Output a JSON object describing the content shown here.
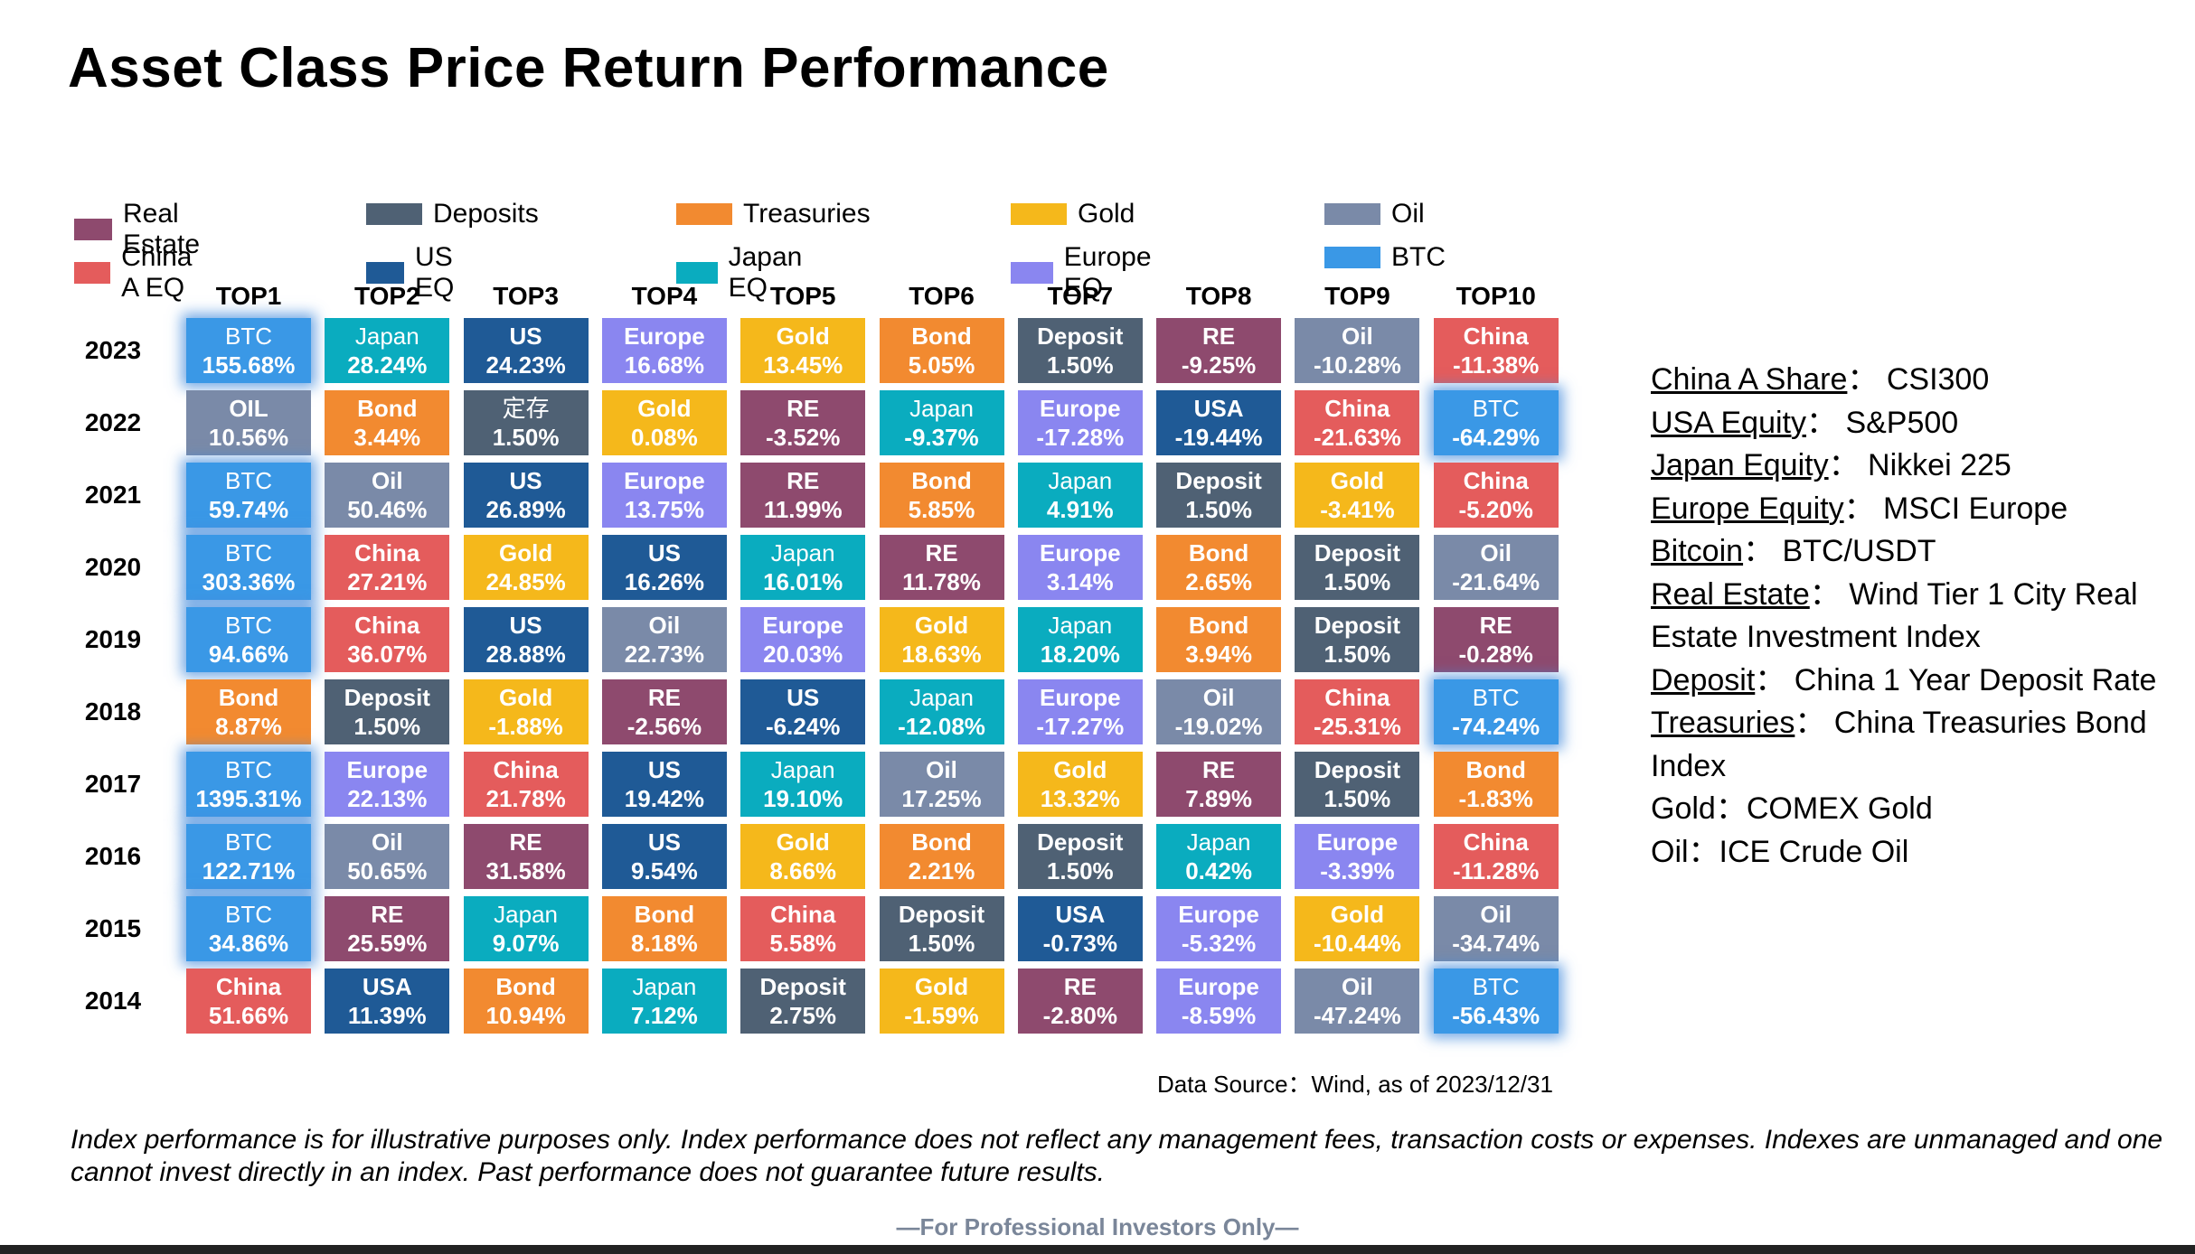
{
  "title": "Asset Class Price Return Performance",
  "colors": {
    "Real Estate": "#8e4a6e",
    "Deposits": "#4f6174",
    "Treasuries": "#f28a30",
    "Gold": "#f5b81b",
    "Oil": "#7a8aa8",
    "China A EQ": "#e45c5c",
    "US EQ": "#1f5a96",
    "Japan EQ": "#0aacbf",
    "Europe EQ": "#8a86f0",
    "BTC": "#3a98e6"
  },
  "legend": [
    {
      "label": "Real Estate",
      "key": "Real Estate"
    },
    {
      "label": "China A EQ",
      "key": "China A EQ"
    },
    {
      "label": "Deposits",
      "key": "Deposits"
    },
    {
      "label": "US EQ",
      "key": "US EQ"
    },
    {
      "label": "Treasuries",
      "key": "Treasuries"
    },
    {
      "label": "Japan EQ",
      "key": "Japan EQ"
    },
    {
      "label": "Gold",
      "key": "Gold"
    },
    {
      "label": "Europe EQ",
      "key": "Europe EQ"
    },
    {
      "label": "Oil",
      "key": "Oil"
    },
    {
      "label": "BTC",
      "key": "BTC"
    }
  ],
  "chart_data": {
    "type": "table",
    "title": "Asset Class Price Return Performance",
    "columns": [
      "TOP1",
      "TOP2",
      "TOP3",
      "TOP4",
      "TOP5",
      "TOP6",
      "TOP7",
      "TOP8",
      "TOP9",
      "TOP10"
    ],
    "rows": [
      {
        "year": "2023",
        "cells": [
          {
            "name": "BTC",
            "value": "155.68%",
            "cls": "BTC"
          },
          {
            "name": "Japan",
            "value": "28.24%",
            "cls": "Japan EQ"
          },
          {
            "name": "US",
            "value": "24.23%",
            "cls": "US EQ"
          },
          {
            "name": "Europe",
            "value": "16.68%",
            "cls": "Europe EQ"
          },
          {
            "name": "Gold",
            "value": "13.45%",
            "cls": "Gold"
          },
          {
            "name": "Bond",
            "value": "5.05%",
            "cls": "Treasuries"
          },
          {
            "name": "Deposit",
            "value": "1.50%",
            "cls": "Deposits"
          },
          {
            "name": "RE",
            "value": "-9.25%",
            "cls": "Real Estate"
          },
          {
            "name": "Oil",
            "value": "-10.28%",
            "cls": "Oil"
          },
          {
            "name": "China",
            "value": "-11.38%",
            "cls": "China A EQ"
          }
        ]
      },
      {
        "year": "2022",
        "cells": [
          {
            "name": "OIL",
            "value": "10.56%",
            "cls": "Oil"
          },
          {
            "name": "Bond",
            "value": "3.44%",
            "cls": "Treasuries"
          },
          {
            "name": "定存",
            "value": "1.50%",
            "cls": "Deposits"
          },
          {
            "name": "Gold",
            "value": "0.08%",
            "cls": "Gold"
          },
          {
            "name": "RE",
            "value": "-3.52%",
            "cls": "Real Estate"
          },
          {
            "name": "Japan",
            "value": "-9.37%",
            "cls": "Japan EQ"
          },
          {
            "name": "Europe",
            "value": "-17.28%",
            "cls": "Europe EQ"
          },
          {
            "name": "USA",
            "value": "-19.44%",
            "cls": "US EQ"
          },
          {
            "name": "China",
            "value": "-21.63%",
            "cls": "China A EQ"
          },
          {
            "name": "BTC",
            "value": "-64.29%",
            "cls": "BTC"
          }
        ]
      },
      {
        "year": "2021",
        "cells": [
          {
            "name": "BTC",
            "value": "59.74%",
            "cls": "BTC"
          },
          {
            "name": "Oil",
            "value": "50.46%",
            "cls": "Oil"
          },
          {
            "name": "US",
            "value": "26.89%",
            "cls": "US EQ"
          },
          {
            "name": "Europe",
            "value": "13.75%",
            "cls": "Europe EQ"
          },
          {
            "name": "RE",
            "value": "11.99%",
            "cls": "Real Estate"
          },
          {
            "name": "Bond",
            "value": "5.85%",
            "cls": "Treasuries"
          },
          {
            "name": "Japan",
            "value": "4.91%",
            "cls": "Japan EQ"
          },
          {
            "name": "Deposit",
            "value": "1.50%",
            "cls": "Deposits"
          },
          {
            "name": "Gold",
            "value": "-3.41%",
            "cls": "Gold"
          },
          {
            "name": "China",
            "value": "-5.20%",
            "cls": "China A EQ"
          }
        ]
      },
      {
        "year": "2020",
        "cells": [
          {
            "name": "BTC",
            "value": "303.36%",
            "cls": "BTC"
          },
          {
            "name": "China",
            "value": "27.21%",
            "cls": "China A EQ"
          },
          {
            "name": "Gold",
            "value": "24.85%",
            "cls": "Gold"
          },
          {
            "name": "US",
            "value": "16.26%",
            "cls": "US EQ"
          },
          {
            "name": "Japan",
            "value": "16.01%",
            "cls": "Japan EQ"
          },
          {
            "name": "RE",
            "value": "11.78%",
            "cls": "Real Estate"
          },
          {
            "name": "Europe",
            "value": "3.14%",
            "cls": "Europe EQ"
          },
          {
            "name": "Bond",
            "value": "2.65%",
            "cls": "Treasuries"
          },
          {
            "name": "Deposit",
            "value": "1.50%",
            "cls": "Deposits"
          },
          {
            "name": "Oil",
            "value": "-21.64%",
            "cls": "Oil"
          }
        ]
      },
      {
        "year": "2019",
        "cells": [
          {
            "name": "BTC",
            "value": "94.66%",
            "cls": "BTC"
          },
          {
            "name": "China",
            "value": "36.07%",
            "cls": "China A EQ"
          },
          {
            "name": "US",
            "value": "28.88%",
            "cls": "US EQ"
          },
          {
            "name": "Oil",
            "value": "22.73%",
            "cls": "Oil"
          },
          {
            "name": "Europe",
            "value": "20.03%",
            "cls": "Europe EQ"
          },
          {
            "name": "Gold",
            "value": "18.63%",
            "cls": "Gold"
          },
          {
            "name": "Japan",
            "value": "18.20%",
            "cls": "Japan EQ"
          },
          {
            "name": "Bond",
            "value": "3.94%",
            "cls": "Treasuries"
          },
          {
            "name": "Deposit",
            "value": "1.50%",
            "cls": "Deposits"
          },
          {
            "name": "RE",
            "value": "-0.28%",
            "cls": "Real Estate"
          }
        ]
      },
      {
        "year": "2018",
        "cells": [
          {
            "name": "Bond",
            "value": "8.87%",
            "cls": "Treasuries"
          },
          {
            "name": "Deposit",
            "value": "1.50%",
            "cls": "Deposits"
          },
          {
            "name": "Gold",
            "value": "-1.88%",
            "cls": "Gold"
          },
          {
            "name": "RE",
            "value": "-2.56%",
            "cls": "Real Estate"
          },
          {
            "name": "US",
            "value": "-6.24%",
            "cls": "US EQ"
          },
          {
            "name": "Japan",
            "value": "-12.08%",
            "cls": "Japan EQ"
          },
          {
            "name": "Europe",
            "value": "-17.27%",
            "cls": "Europe EQ"
          },
          {
            "name": "Oil",
            "value": "-19.02%",
            "cls": "Oil"
          },
          {
            "name": "China",
            "value": "-25.31%",
            "cls": "China A EQ"
          },
          {
            "name": "BTC",
            "value": "-74.24%",
            "cls": "BTC"
          }
        ]
      },
      {
        "year": "2017",
        "cells": [
          {
            "name": "BTC",
            "value": "1395.31%",
            "cls": "BTC"
          },
          {
            "name": "Europe",
            "value": "22.13%",
            "cls": "Europe EQ"
          },
          {
            "name": "China",
            "value": "21.78%",
            "cls": "China A EQ"
          },
          {
            "name": "US",
            "value": "19.42%",
            "cls": "US EQ"
          },
          {
            "name": "Japan",
            "value": "19.10%",
            "cls": "Japan EQ"
          },
          {
            "name": "Oil",
            "value": "17.25%",
            "cls": "Oil"
          },
          {
            "name": "Gold",
            "value": "13.32%",
            "cls": "Gold"
          },
          {
            "name": "RE",
            "value": "7.89%",
            "cls": "Real Estate"
          },
          {
            "name": "Deposit",
            "value": "1.50%",
            "cls": "Deposits"
          },
          {
            "name": "Bond",
            "value": "-1.83%",
            "cls": "Treasuries"
          }
        ]
      },
      {
        "year": "2016",
        "cells": [
          {
            "name": "BTC",
            "value": "122.71%",
            "cls": "BTC"
          },
          {
            "name": "Oil",
            "value": "50.65%",
            "cls": "Oil"
          },
          {
            "name": "RE",
            "value": "31.58%",
            "cls": "Real Estate"
          },
          {
            "name": "US",
            "value": "9.54%",
            "cls": "US EQ"
          },
          {
            "name": "Gold",
            "value": "8.66%",
            "cls": "Gold"
          },
          {
            "name": "Bond",
            "value": "2.21%",
            "cls": "Treasuries"
          },
          {
            "name": "Deposit",
            "value": "1.50%",
            "cls": "Deposits"
          },
          {
            "name": "Japan",
            "value": "0.42%",
            "cls": "Japan EQ"
          },
          {
            "name": "Europe",
            "value": "-3.39%",
            "cls": "Europe EQ"
          },
          {
            "name": "China",
            "value": "-11.28%",
            "cls": "China A EQ"
          }
        ]
      },
      {
        "year": "2015",
        "cells": [
          {
            "name": "BTC",
            "value": "34.86%",
            "cls": "BTC"
          },
          {
            "name": "RE",
            "value": "25.59%",
            "cls": "Real Estate"
          },
          {
            "name": "Japan",
            "value": "9.07%",
            "cls": "Japan EQ"
          },
          {
            "name": "Bond",
            "value": "8.18%",
            "cls": "Treasuries"
          },
          {
            "name": "China",
            "value": "5.58%",
            "cls": "China A EQ"
          },
          {
            "name": "Deposit",
            "value": "1.50%",
            "cls": "Deposits"
          },
          {
            "name": "USA",
            "value": "-0.73%",
            "cls": "US EQ"
          },
          {
            "name": "Europe",
            "value": "-5.32%",
            "cls": "Europe EQ"
          },
          {
            "name": "Gold",
            "value": "-10.44%",
            "cls": "Gold"
          },
          {
            "name": "Oil",
            "value": "-34.74%",
            "cls": "Oil"
          }
        ]
      },
      {
        "year": "2014",
        "cells": [
          {
            "name": "China",
            "value": "51.66%",
            "cls": "China A EQ"
          },
          {
            "name": "USA",
            "value": "11.39%",
            "cls": "US EQ"
          },
          {
            "name": "Bond",
            "value": "10.94%",
            "cls": "Treasuries"
          },
          {
            "name": "Japan",
            "value": "7.12%",
            "cls": "Japan EQ"
          },
          {
            "name": "Deposit",
            "value": "2.75%",
            "cls": "Deposits"
          },
          {
            "name": "Gold",
            "value": "-1.59%",
            "cls": "Gold"
          },
          {
            "name": "RE",
            "value": "-2.80%",
            "cls": "Real Estate"
          },
          {
            "name": "Europe",
            "value": "-8.59%",
            "cls": "Europe EQ"
          },
          {
            "name": "Oil",
            "value": "-47.24%",
            "cls": "Oil"
          },
          {
            "name": "BTC",
            "value": "-56.43%",
            "cls": "BTC"
          }
        ]
      }
    ]
  },
  "notes": [
    {
      "label": "China A Share",
      "sep": "：",
      "text": "CSI300"
    },
    {
      "label": "USA Equity",
      "sep": "：",
      "text": "S&P500"
    },
    {
      "label": "Japan Equity",
      "sep": "：",
      "text": "Nikkei 225"
    },
    {
      "label": "Europe Equity",
      "sep": "：",
      "text": "MSCI Europe"
    },
    {
      "label": "Bitcoin",
      "sep": "：",
      "text": "BTC/USDT"
    },
    {
      "label": "Real Estate",
      "sep": "：",
      "text": "Wind Tier 1 City Real Estate Investment Index"
    },
    {
      "label": "Deposit",
      "sep": "：",
      "text": "China 1 Year Deposit Rate"
    },
    {
      "label": "Treasuries",
      "sep": "：",
      "text": "China Treasuries Bond Index"
    },
    {
      "label": "",
      "sep": "",
      "text": "Gold：COMEX Gold"
    },
    {
      "label": "",
      "sep": "",
      "text": "Oil：ICE Crude Oil"
    }
  ],
  "source": "Data Source：Wind, as of 2023/12/31",
  "disclaimer": "Index performance is for illustrative purposes only. Index performance does not reflect any management fees, transaction costs or expenses. Indexes are unmanaged and one cannot invest directly in an index. Past performance does not guarantee future results.",
  "footer": "—For Professional Investors Only—"
}
